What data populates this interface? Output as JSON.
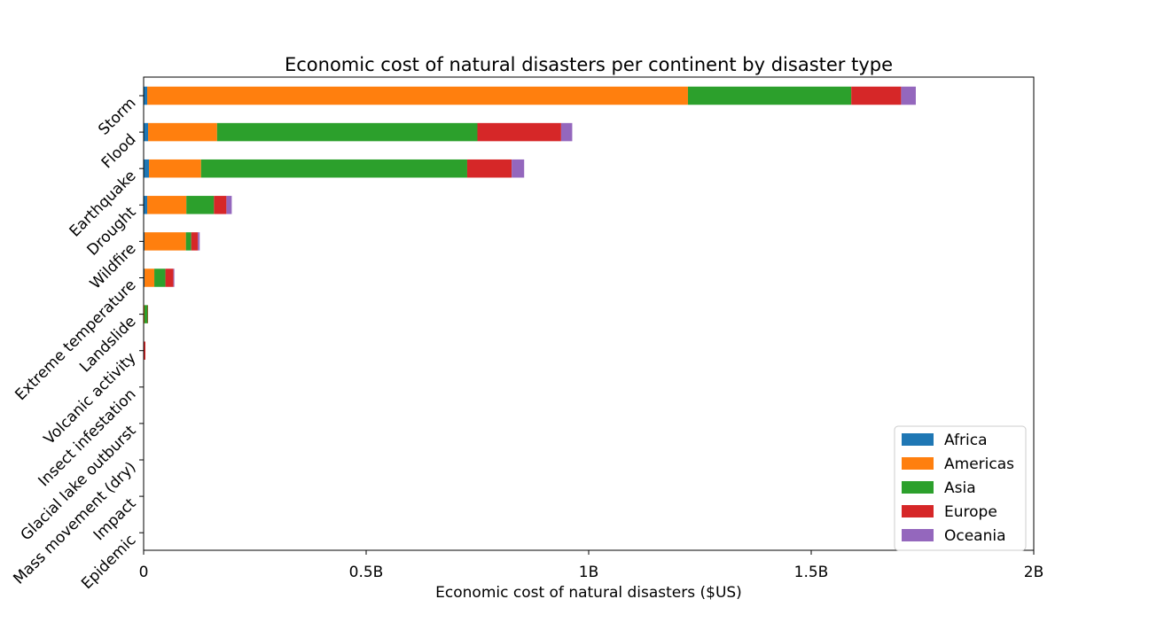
{
  "chart_data": {
    "type": "bar",
    "orientation": "horizontal",
    "stacked": true,
    "title": "Economic cost of natural disasters per continent by disaster type",
    "xlabel": "Economic cost of natural disasters ($US)",
    "ylabel": "",
    "xlim": [
      0,
      2000000000
    ],
    "xticks": [
      {
        "value": 0,
        "label": "0"
      },
      {
        "value": 500000000,
        "label": "0.5B"
      },
      {
        "value": 1000000000,
        "label": "1B"
      },
      {
        "value": 1500000000,
        "label": "1.5B"
      },
      {
        "value": 2000000000,
        "label": "2B"
      }
    ],
    "categories": [
      "Storm",
      "Flood",
      "Earthquake",
      "Drought",
      "Wildfire",
      "Extreme temperature",
      "Landslide",
      "Volcanic activity",
      "Insect infestation",
      "Glacial lake outburst",
      "Mass movement (dry)",
      "Impact",
      "Epidemic"
    ],
    "series": [
      {
        "name": "Africa",
        "color": "#1f77b4",
        "values": [
          8000000,
          10000000,
          12000000,
          8000000,
          2000000,
          2000000,
          500000,
          0,
          0,
          0,
          0,
          0,
          0
        ]
      },
      {
        "name": "Americas",
        "color": "#ff7f0e",
        "values": [
          1215000000,
          155000000,
          117000000,
          88000000,
          93000000,
          22000000,
          1500000,
          0,
          0,
          0,
          0,
          0,
          0
        ]
      },
      {
        "name": "Asia",
        "color": "#2ca02c",
        "values": [
          367000000,
          585000000,
          598000000,
          62000000,
          12000000,
          25000000,
          7000000,
          1000000,
          0,
          0,
          0,
          0,
          0
        ]
      },
      {
        "name": "Europe",
        "color": "#d62728",
        "values": [
          112000000,
          188000000,
          100000000,
          28000000,
          15000000,
          18000000,
          1000000,
          3000000,
          0,
          0,
          0,
          0,
          0
        ]
      },
      {
        "name": "Oceania",
        "color": "#9467bd",
        "values": [
          33000000,
          25000000,
          28000000,
          12000000,
          4000000,
          2000000,
          0,
          0,
          0,
          0,
          0,
          0,
          0
        ]
      }
    ],
    "grid": false,
    "legend_position": "lower-right"
  }
}
